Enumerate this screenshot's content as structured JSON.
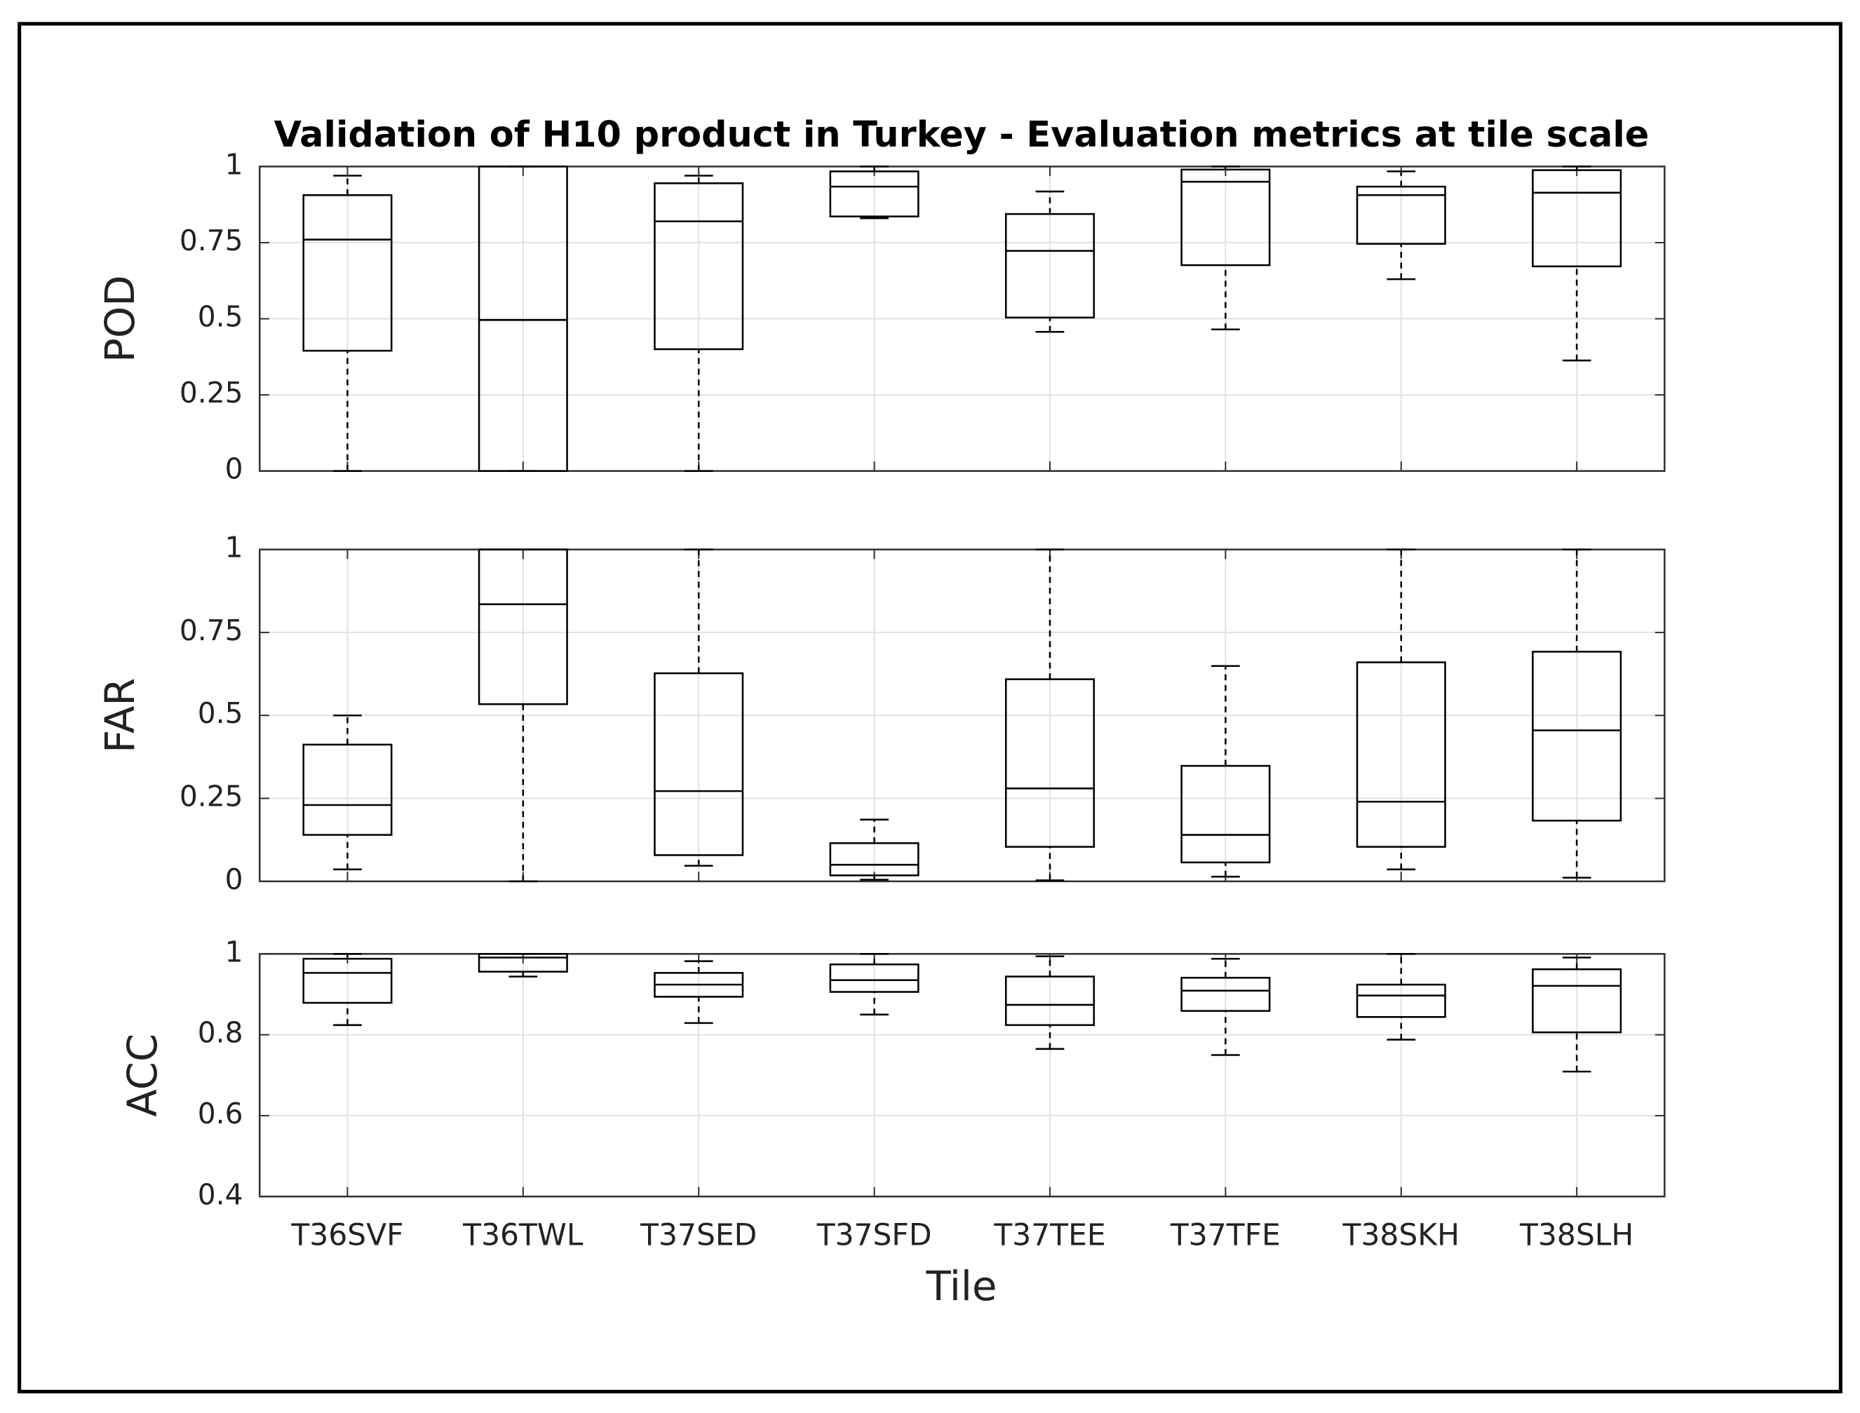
{
  "chart_data": [
    {
      "type": "box",
      "title": "Validation of H10 product in Turkey - Evaluation metrics at tile scale",
      "ylabel": "POD",
      "ylim": [
        0,
        1
      ],
      "yticks": [
        0,
        0.25,
        0.5,
        0.75,
        1
      ],
      "grid": true,
      "whisker_low": [
        0,
        0,
        0,
        0.83,
        0.457,
        0.465,
        0.63,
        0.363
      ],
      "q1": [
        0.395,
        0,
        0.4,
        0.836,
        0.504,
        0.676,
        0.746,
        0.672
      ],
      "median": [
        0.76,
        0.496,
        0.82,
        0.934,
        0.723,
        0.95,
        0.906,
        0.914
      ],
      "q3": [
        0.906,
        1,
        0.945,
        0.984,
        0.844,
        0.99,
        0.934,
        0.988
      ],
      "whisker_high": [
        0.97,
        1,
        0.97,
        1,
        0.918,
        1,
        0.984,
        1
      ]
    },
    {
      "type": "box",
      "ylabel": "FAR",
      "ylim": [
        0,
        1
      ],
      "yticks": [
        0,
        0.25,
        0.5,
        0.75,
        1
      ],
      "grid": true,
      "whisker_low": [
        0.036,
        0,
        0.047,
        0.005,
        0.003,
        0.014,
        0.036,
        0.011
      ],
      "q1": [
        0.14,
        0.534,
        0.079,
        0.018,
        0.104,
        0.057,
        0.104,
        0.183
      ],
      "median": [
        0.23,
        0.835,
        0.272,
        0.05,
        0.28,
        0.14,
        0.24,
        0.455
      ],
      "q3": [
        0.412,
        1,
        0.627,
        0.115,
        0.609,
        0.348,
        0.66,
        0.692
      ],
      "whisker_high": [
        0.5,
        1,
        1,
        0.186,
        1,
        0.649,
        1,
        1
      ]
    },
    {
      "type": "box",
      "ylabel": "ACC",
      "xlabel": "Tile",
      "categories": [
        "T36SVF",
        "T36TWL",
        "T37SED",
        "T37SFD",
        "T37TEE",
        "T37TFE",
        "T38SKH",
        "T38SLH"
      ],
      "ylim": [
        0.4,
        1
      ],
      "yticks": [
        0.4,
        0.6,
        0.8,
        1
      ],
      "grid": true,
      "whisker_low": [
        0.824,
        0.944,
        0.829,
        0.85,
        0.765,
        0.75,
        0.788,
        0.709
      ],
      "q1": [
        0.879,
        0.956,
        0.894,
        0.906,
        0.824,
        0.859,
        0.844,
        0.806
      ],
      "median": [
        0.953,
        0.991,
        0.924,
        0.935,
        0.874,
        0.909,
        0.897,
        0.921
      ],
      "q3": [
        0.988,
        1,
        0.953,
        0.974,
        0.944,
        0.941,
        0.924,
        0.962
      ],
      "whisker_high": [
        1,
        1,
        0.982,
        1,
        0.994,
        0.988,
        1,
        0.991
      ]
    }
  ]
}
